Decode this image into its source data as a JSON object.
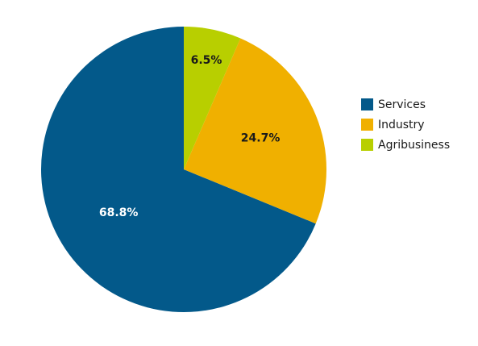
{
  "chart_data": {
    "type": "pie",
    "title": "",
    "series": [
      {
        "name": "Services",
        "value": 68.8,
        "label": "68.8%",
        "color": "#03598a",
        "label_color": "#ffffff"
      },
      {
        "name": "Industry",
        "value": 24.7,
        "label": "24.7%",
        "color": "#f0b000",
        "label_color": "#1a1a1a"
      },
      {
        "name": "Agribusiness",
        "value": 6.5,
        "label": "6.5%",
        "color": "#b8cf00",
        "label_color": "#1a1a1a"
      }
    ],
    "legend_position": "right"
  }
}
